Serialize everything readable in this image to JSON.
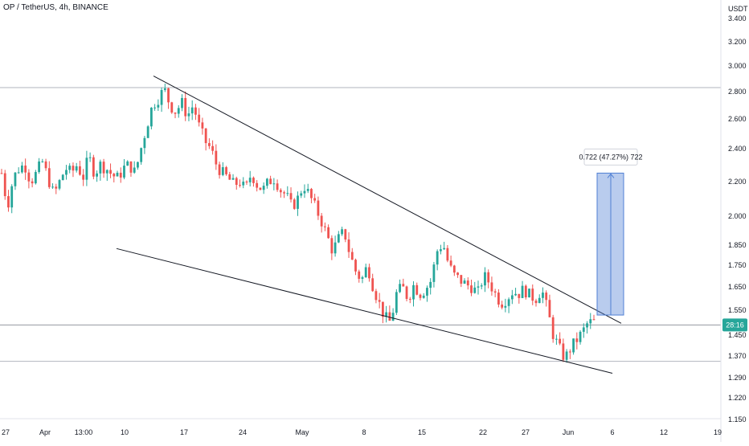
{
  "chart_data": {
    "type": "candlestick",
    "title": "OP / TetherUS, 4h, BINANCE",
    "currency_label": "USDT",
    "y_scale": "log",
    "ylim": [
      1.15,
      3.45
    ],
    "y_ticks": [
      "3.400",
      "3.200",
      "3.000",
      "2.800",
      "2.600",
      "2.400",
      "2.200",
      "2.000",
      "1.850",
      "1.750",
      "1.650",
      "1.550",
      "1.450",
      "1.370",
      "1.290",
      "1.220",
      "1.150"
    ],
    "x_ticks": [
      "27",
      "Apr",
      "13:00",
      "10",
      "17",
      "24",
      "May",
      "8",
      "15",
      "22",
      "27",
      "Jun",
      "6",
      "12",
      "19"
    ],
    "last_price_badge": "28:16",
    "horizontal_levels": [
      2.83,
      1.49,
      1.35
    ],
    "wedge_upper": [
      [
        2.92,
        1.49
      ]
    ],
    "wedge_lower": [
      [
        1.8,
        1.3
      ]
    ],
    "measurement": {
      "label": "0.722 (47.27%) 722",
      "from": 1.53,
      "to": 2.25
    },
    "close_path": [
      2.25,
      2.05,
      2.22,
      2.28,
      2.3,
      2.2,
      2.25,
      2.32,
      2.22,
      2.12,
      2.2,
      2.28,
      2.25,
      2.3,
      2.22,
      2.35,
      2.25,
      2.3,
      2.28,
      2.24,
      2.22,
      2.28,
      2.3,
      2.25,
      2.4,
      2.55,
      2.7,
      2.75,
      2.82,
      2.7,
      2.65,
      2.72,
      2.62,
      2.7,
      2.55,
      2.45,
      2.4,
      2.3,
      2.25,
      2.22,
      2.18,
      2.2,
      2.15,
      2.25,
      2.18,
      2.15,
      2.2,
      2.22,
      2.15,
      2.12,
      2.05,
      2.1,
      2.18,
      2.12,
      2.05,
      1.98,
      1.9,
      1.82,
      1.88,
      1.92,
      1.8,
      1.72,
      1.68,
      1.75,
      1.65,
      1.58,
      1.52,
      1.5,
      1.62,
      1.65,
      1.6,
      1.66,
      1.62,
      1.64,
      1.68,
      1.82,
      1.86,
      1.75,
      1.7,
      1.68,
      1.66,
      1.65,
      1.62,
      1.7,
      1.67,
      1.62,
      1.58,
      1.6,
      1.63,
      1.62,
      1.64,
      1.61,
      1.6,
      1.64,
      1.55,
      1.45,
      1.4,
      1.36,
      1.4,
      1.43,
      1.46,
      1.5,
      1.5
    ],
    "colors": {
      "up": "#26a69a",
      "down": "#ef5350",
      "measure": "#4f7fd4"
    }
  }
}
